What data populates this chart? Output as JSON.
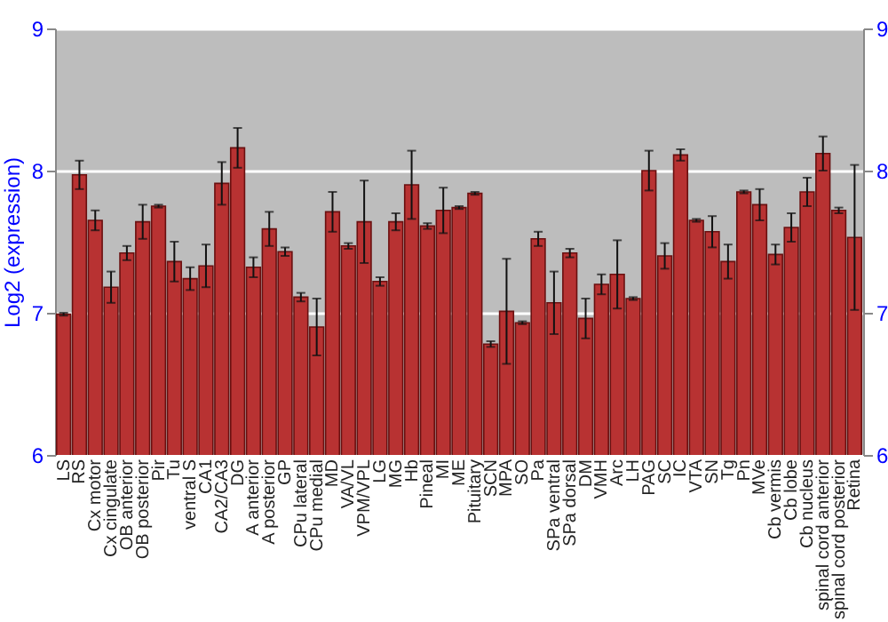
{
  "chart_data": {
    "type": "bar",
    "ylabel": "Log2 (expression)",
    "categories": [
      "LS",
      "RS",
      "Cx motor",
      "Cx cingulate",
      "OB anterior",
      "OB posterior",
      "Pir",
      "Tu",
      "ventral S",
      "CA1",
      "CA2/CA3",
      "DG",
      "A anterior",
      "A posterior",
      "GP",
      "CPu lateral",
      "CPu medial",
      "MD",
      "VA/VL",
      "VPM/VPL",
      "LG",
      "MG",
      "Hb",
      "Pineal",
      "MI",
      "ME",
      "Pituitary",
      "SCN",
      "MPA",
      "SO",
      "Pa",
      "SPa ventral",
      "SPa dorsal",
      "DM",
      "VMH",
      "Arc",
      "LH",
      "PAG",
      "SC",
      "IC",
      "VTA",
      "SN",
      "Tg",
      "Pn",
      "MVe",
      "Cb vermis",
      "Cb lobe",
      "Cb nucleus",
      "spinal cord anterior",
      "spinal cord posterior",
      "Retina"
    ],
    "values": [
      6.99,
      7.97,
      7.65,
      7.18,
      7.42,
      7.64,
      7.75,
      7.36,
      7.24,
      7.33,
      7.91,
      8.16,
      7.32,
      7.59,
      7.43,
      7.11,
      6.9,
      7.71,
      7.47,
      7.64,
      7.22,
      7.64,
      7.9,
      7.61,
      7.72,
      7.74,
      7.84,
      6.78,
      7.01,
      6.93,
      7.52,
      7.07,
      7.42,
      6.96,
      7.2,
      7.27,
      7.1,
      8.0,
      7.4,
      8.11,
      7.65,
      7.57,
      7.36,
      7.85,
      7.76,
      7.41,
      7.6,
      7.85,
      8.12,
      7.72,
      7.53
    ],
    "errors": [
      0.01,
      0.1,
      0.07,
      0.11,
      0.05,
      0.12,
      0.01,
      0.14,
      0.08,
      0.15,
      0.15,
      0.14,
      0.07,
      0.12,
      0.03,
      0.03,
      0.2,
      0.14,
      0.02,
      0.29,
      0.03,
      0.06,
      0.24,
      0.02,
      0.16,
      0.01,
      0.01,
      0.02,
      0.37,
      0.01,
      0.05,
      0.22,
      0.03,
      0.14,
      0.07,
      0.24,
      0.01,
      0.14,
      0.09,
      0.04,
      0.01,
      0.11,
      0.12,
      0.01,
      0.11,
      0.07,
      0.1,
      0.1,
      0.12,
      0.02,
      0.51
    ],
    "color": "#b83232",
    "ylim": [
      6,
      9
    ],
    "yticks": [
      6,
      7,
      8,
      9
    ],
    "y2lim": [
      6,
      9
    ],
    "y2ticks": [
      6,
      7,
      8,
      9
    ],
    "grid": "y"
  }
}
